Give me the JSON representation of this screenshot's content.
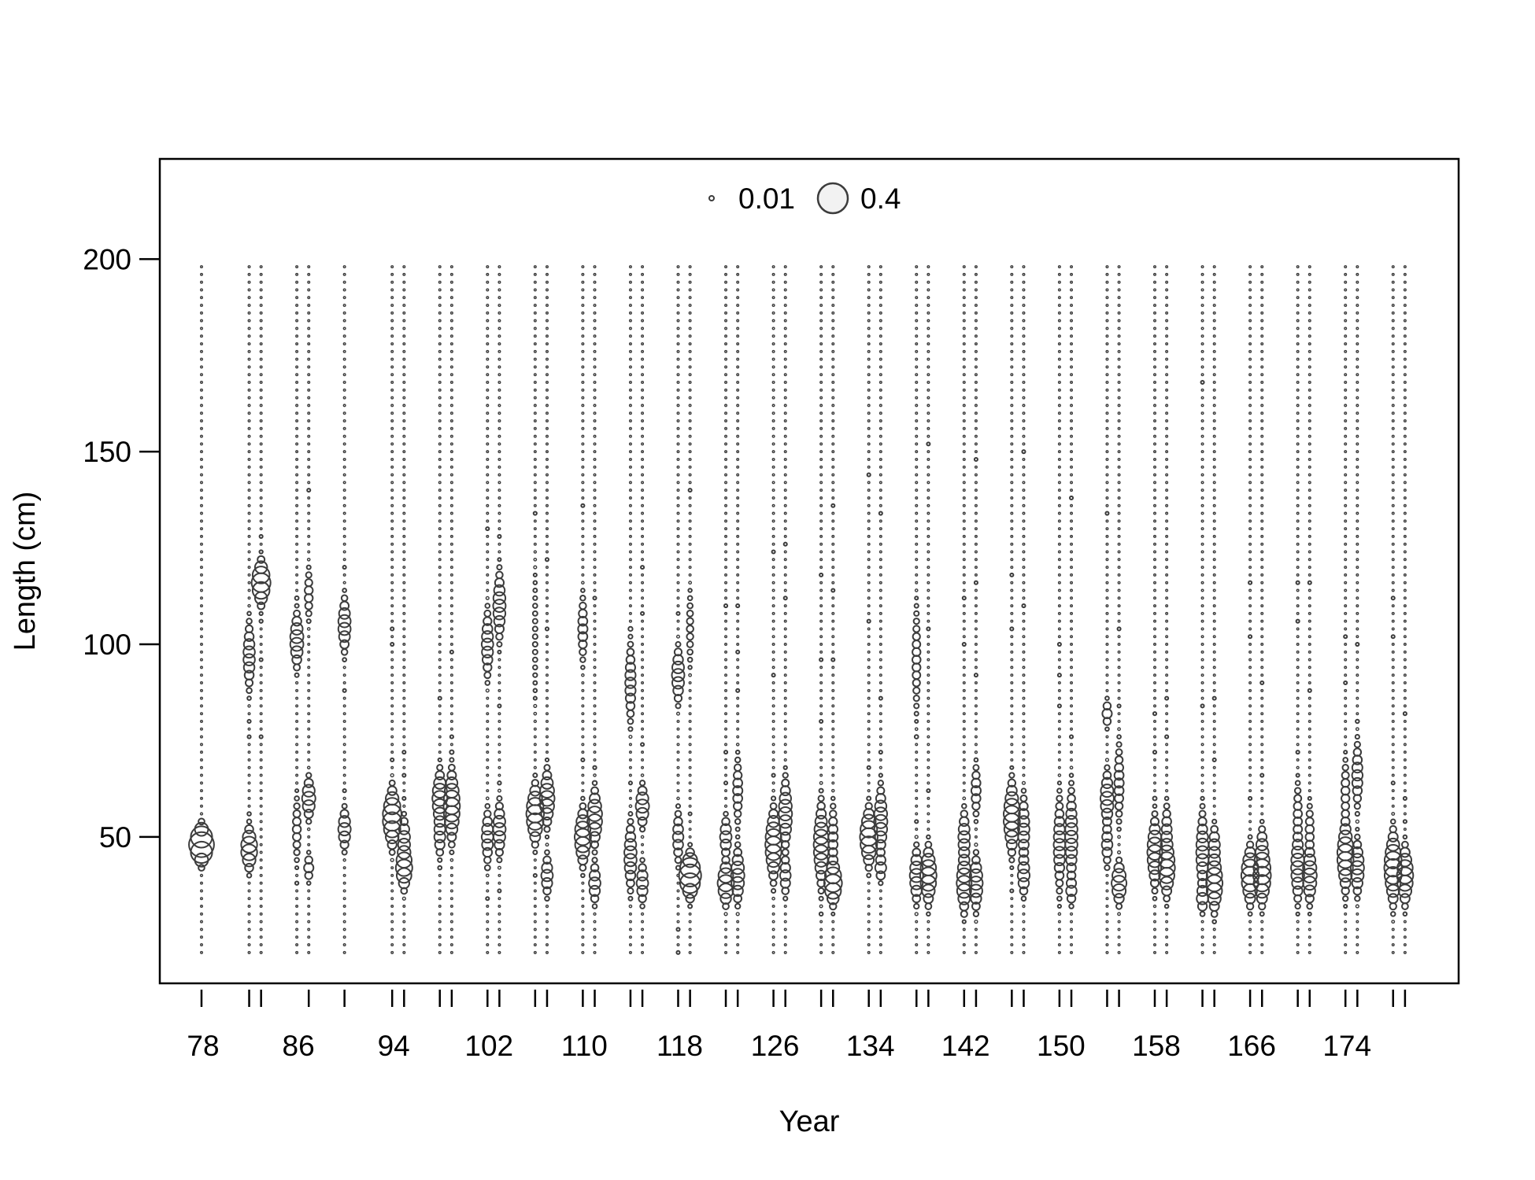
{
  "chart_data": {
    "type": "scatter",
    "subtype": "bubble",
    "title": "",
    "xlabel": "Year",
    "ylabel": "Length (cm)",
    "xlim": [
      74.5,
      183.5
    ],
    "ylim": [
      12,
      226
    ],
    "x_ticks": [
      78,
      86,
      94,
      102,
      110,
      118,
      126,
      134,
      142,
      150,
      158,
      166,
      174
    ],
    "x_minor_ticks": [
      82,
      83,
      87,
      90,
      94,
      95,
      98,
      99,
      102,
      103,
      106,
      107,
      110,
      111,
      114,
      115,
      118,
      119,
      122,
      123,
      126,
      127,
      130,
      131,
      134,
      135,
      138,
      139,
      142,
      143,
      146,
      147,
      150,
      151,
      154,
      155,
      158,
      159,
      162,
      163,
      166,
      167,
      170,
      171,
      174,
      175,
      178,
      179
    ],
    "y_ticks": [
      50,
      100,
      150,
      200
    ],
    "grid": false,
    "legend": {
      "position": "top-center",
      "entries": [
        {
          "label": "0.01",
          "value": 0.01
        },
        {
          "label": "0.4",
          "value": 0.4
        }
      ]
    },
    "size_variable": "proportion",
    "length_bins": {
      "min": 20,
      "max": 198,
      "step": 2
    },
    "years": [
      78,
      82,
      83,
      86,
      87,
      90,
      94,
      95,
      98,
      99,
      102,
      103,
      106,
      107,
      110,
      111,
      114,
      115,
      118,
      119,
      122,
      123,
      126,
      127,
      130,
      131,
      134,
      135,
      138,
      139,
      142,
      143,
      146,
      147,
      150,
      151,
      154,
      155,
      158,
      159,
      162,
      163,
      166,
      167,
      170,
      171,
      174,
      175,
      178,
      179
    ],
    "series": [
      {
        "year": 78,
        "peaks": [
          [
            48,
            0.28,
            2.5
          ]
        ],
        "extra_lengths": []
      },
      {
        "year": 82,
        "peaks": [
          [
            47,
            0.12,
            3
          ],
          [
            97,
            0.06,
            5
          ]
        ],
        "extra_lengths": [
          56,
          76,
          80
        ]
      },
      {
        "year": 83,
        "peaks": [
          [
            116,
            0.16,
            3
          ]
        ],
        "extra_lengths": [
          76,
          96,
          106,
          128
        ]
      },
      {
        "year": 86,
        "peaks": [
          [
            101,
            0.08,
            4
          ],
          [
            52,
            0.03,
            5
          ]
        ],
        "extra_lengths": [
          38,
          112
        ]
      },
      {
        "year": 87,
        "peaks": [
          [
            60,
            0.08,
            3
          ],
          [
            42,
            0.04,
            2
          ],
          [
            113,
            0.03,
            4
          ]
        ],
        "extra_lengths": [
          140
        ]
      },
      {
        "year": 90,
        "peaks": [
          [
            105,
            0.07,
            4
          ],
          [
            52,
            0.07,
            3
          ]
        ],
        "extra_lengths": [
          62,
          88,
          120
        ]
      },
      {
        "year": 94,
        "peaks": [
          [
            55,
            0.16,
            4
          ]
        ],
        "extra_lengths": [
          70,
          100,
          104
        ]
      },
      {
        "year": 95,
        "peaks": [
          [
            42,
            0.12,
            3
          ],
          [
            50,
            0.06,
            3
          ]
        ],
        "extra_lengths": [
          60,
          66,
          72
        ]
      },
      {
        "year": 98,
        "peaks": [
          [
            60,
            0.1,
            4
          ],
          [
            50,
            0.05,
            3
          ]
        ],
        "extra_lengths": [
          42,
          86
        ]
      },
      {
        "year": 99,
        "peaks": [
          [
            58,
            0.12,
            5
          ]
        ],
        "extra_lengths": [
          72,
          76,
          98
        ]
      },
      {
        "year": 102,
        "peaks": [
          [
            50,
            0.06,
            4
          ],
          [
            100,
            0.06,
            5
          ]
        ],
        "extra_lengths": [
          34,
          42,
          130
        ]
      },
      {
        "year": 103,
        "peaks": [
          [
            110,
            0.07,
            5
          ],
          [
            52,
            0.07,
            4
          ]
        ],
        "extra_lengths": [
          36,
          64,
          84,
          128
        ]
      },
      {
        "year": 106,
        "peaks": [
          [
            56,
            0.14,
            4
          ],
          [
            102,
            0.01,
            12
          ]
        ],
        "extra_lengths": [
          40,
          134
        ]
      },
      {
        "year": 107,
        "peaks": [
          [
            60,
            0.1,
            4
          ],
          [
            40,
            0.06,
            3
          ]
        ],
        "extra_lengths": [
          104,
          122
        ]
      },
      {
        "year": 110,
        "peaks": [
          [
            50,
            0.12,
            4
          ],
          [
            104,
            0.04,
            5
          ]
        ],
        "extra_lengths": [
          70,
          136
        ]
      },
      {
        "year": 111,
        "peaks": [
          [
            55,
            0.1,
            4
          ],
          [
            38,
            0.06,
            3
          ]
        ],
        "extra_lengths": [
          68,
          112
        ]
      },
      {
        "year": 114,
        "peaks": [
          [
            45,
            0.07,
            5
          ],
          [
            90,
            0.05,
            6
          ]
        ],
        "extra_lengths": [
          64,
          104
        ]
      },
      {
        "year": 115,
        "peaks": [
          [
            58,
            0.08,
            3
          ],
          [
            38,
            0.06,
            3
          ]
        ],
        "extra_lengths": [
          74,
          108,
          120
        ]
      },
      {
        "year": 118,
        "peaks": [
          [
            92,
            0.07,
            4
          ],
          [
            50,
            0.05,
            4
          ]
        ],
        "extra_lengths": [
          20,
          26,
          108
        ]
      },
      {
        "year": 119,
        "peaks": [
          [
            40,
            0.22,
            3
          ],
          [
            104,
            0.02,
            6
          ]
        ],
        "extra_lengths": [
          56,
          140
        ]
      },
      {
        "year": 122,
        "peaks": [
          [
            38,
            0.12,
            3
          ],
          [
            50,
            0.06,
            3
          ]
        ],
        "extra_lengths": [
          64,
          72,
          110
        ]
      },
      {
        "year": 123,
        "peaks": [
          [
            40,
            0.08,
            4
          ],
          [
            62,
            0.04,
            5
          ]
        ],
        "extra_lengths": [
          88,
          98,
          110
        ]
      },
      {
        "year": 126,
        "peaks": [
          [
            48,
            0.12,
            5
          ]
        ],
        "extra_lengths": [
          66,
          92,
          124
        ]
      },
      {
        "year": 127,
        "peaks": [
          [
            56,
            0.08,
            5
          ],
          [
            40,
            0.05,
            3
          ]
        ],
        "extra_lengths": [
          112,
          126
        ]
      },
      {
        "year": 130,
        "peaks": [
          [
            48,
            0.1,
            6
          ]
        ],
        "extra_lengths": [
          30,
          80,
          96,
          118
        ]
      },
      {
        "year": 131,
        "peaks": [
          [
            38,
            0.14,
            3
          ],
          [
            50,
            0.04,
            5
          ]
        ],
        "extra_lengths": [
          96,
          114,
          136
        ]
      },
      {
        "year": 134,
        "peaks": [
          [
            50,
            0.14,
            4
          ]
        ],
        "extra_lengths": [
          68,
          106,
          144
        ]
      },
      {
        "year": 135,
        "peaks": [
          [
            54,
            0.08,
            5
          ],
          [
            42,
            0.05,
            2
          ]
        ],
        "extra_lengths": [
          72,
          86,
          134
        ]
      },
      {
        "year": 138,
        "peaks": [
          [
            40,
            0.08,
            4
          ],
          [
            96,
            0.03,
            8
          ]
        ],
        "extra_lengths": [
          54,
          76
        ]
      },
      {
        "year": 139,
        "peaks": [
          [
            40,
            0.12,
            4
          ]
        ],
        "extra_lengths": [
          62,
          104,
          152
        ]
      },
      {
        "year": 142,
        "peaks": [
          [
            38,
            0.1,
            4
          ],
          [
            50,
            0.06,
            4
          ]
        ],
        "extra_lengths": [
          30,
          100,
          112
        ]
      },
      {
        "year": 143,
        "peaks": [
          [
            38,
            0.08,
            4
          ],
          [
            62,
            0.04,
            4
          ]
        ],
        "extra_lengths": [
          92,
          116,
          148
        ]
      },
      {
        "year": 146,
        "peaks": [
          [
            55,
            0.12,
            5
          ]
        ],
        "extra_lengths": [
          36,
          104,
          118
        ]
      },
      {
        "year": 147,
        "peaks": [
          [
            52,
            0.06,
            5
          ],
          [
            40,
            0.06,
            3
          ]
        ],
        "extra_lengths": [
          110,
          150
        ]
      },
      {
        "year": 150,
        "peaks": [
          [
            48,
            0.06,
            7
          ]
        ],
        "extra_lengths": [
          84,
          92,
          100
        ]
      },
      {
        "year": 151,
        "peaks": [
          [
            50,
            0.07,
            7
          ],
          [
            36,
            0.04,
            2
          ]
        ],
        "extra_lengths": [
          76,
          138
        ]
      },
      {
        "year": 154,
        "peaks": [
          [
            60,
            0.08,
            4
          ],
          [
            48,
            0.05,
            3
          ],
          [
            82,
            0.04,
            2
          ]
        ],
        "extra_lengths": [
          42,
          134
        ]
      },
      {
        "year": 155,
        "peaks": [
          [
            38,
            0.1,
            3
          ],
          [
            64,
            0.04,
            6
          ]
        ],
        "extra_lengths": [
          84,
          104
        ]
      },
      {
        "year": 158,
        "peaks": [
          [
            46,
            0.1,
            5
          ]
        ],
        "extra_lengths": [
          60,
          72,
          82
        ]
      },
      {
        "year": 159,
        "peaks": [
          [
            42,
            0.12,
            4
          ],
          [
            52,
            0.04,
            4
          ]
        ],
        "extra_lengths": [
          76,
          86
        ]
      },
      {
        "year": 162,
        "peaks": [
          [
            46,
            0.07,
            6
          ],
          [
            34,
            0.05,
            2
          ]
        ],
        "extra_lengths": [
          84,
          168
        ]
      },
      {
        "year": 163,
        "peaks": [
          [
            38,
            0.12,
            4
          ],
          [
            48,
            0.05,
            3
          ]
        ],
        "extra_lengths": [
          70,
          86
        ]
      },
      {
        "year": 166,
        "peaks": [
          [
            40,
            0.14,
            4
          ]
        ],
        "extra_lengths": [
          60,
          102,
          116
        ]
      },
      {
        "year": 167,
        "peaks": [
          [
            40,
            0.14,
            4
          ],
          [
            48,
            0.04,
            3
          ]
        ],
        "extra_lengths": [
          66,
          90
        ]
      },
      {
        "year": 170,
        "peaks": [
          [
            42,
            0.08,
            5
          ],
          [
            56,
            0.03,
            5
          ]
        ],
        "extra_lengths": [
          72,
          106,
          116
        ]
      },
      {
        "year": 171,
        "peaks": [
          [
            40,
            0.09,
            4
          ],
          [
            52,
            0.03,
            4
          ]
        ],
        "extra_lengths": [
          88,
          116
        ]
      },
      {
        "year": 174,
        "peaks": [
          [
            45,
            0.12,
            5
          ],
          [
            62,
            0.03,
            5
          ]
        ],
        "extra_lengths": [
          90,
          102
        ]
      },
      {
        "year": 175,
        "peaks": [
          [
            42,
            0.08,
            4
          ],
          [
            66,
            0.05,
            5
          ]
        ],
        "extra_lengths": [
          80,
          100
        ]
      },
      {
        "year": 178,
        "peaks": [
          [
            42,
            0.14,
            5
          ]
        ],
        "extra_lengths": [
          64,
          102,
          112
        ]
      },
      {
        "year": 179,
        "peaks": [
          [
            40,
            0.12,
            4
          ]
        ],
        "extra_lengths": [
          54,
          60,
          82
        ]
      }
    ]
  },
  "colors": {
    "bubble_stroke": "#3c3c3c",
    "bubble_fill": "#ffffff",
    "legend_bubble_fill": "#f2f2f2",
    "axis": "#000000"
  }
}
